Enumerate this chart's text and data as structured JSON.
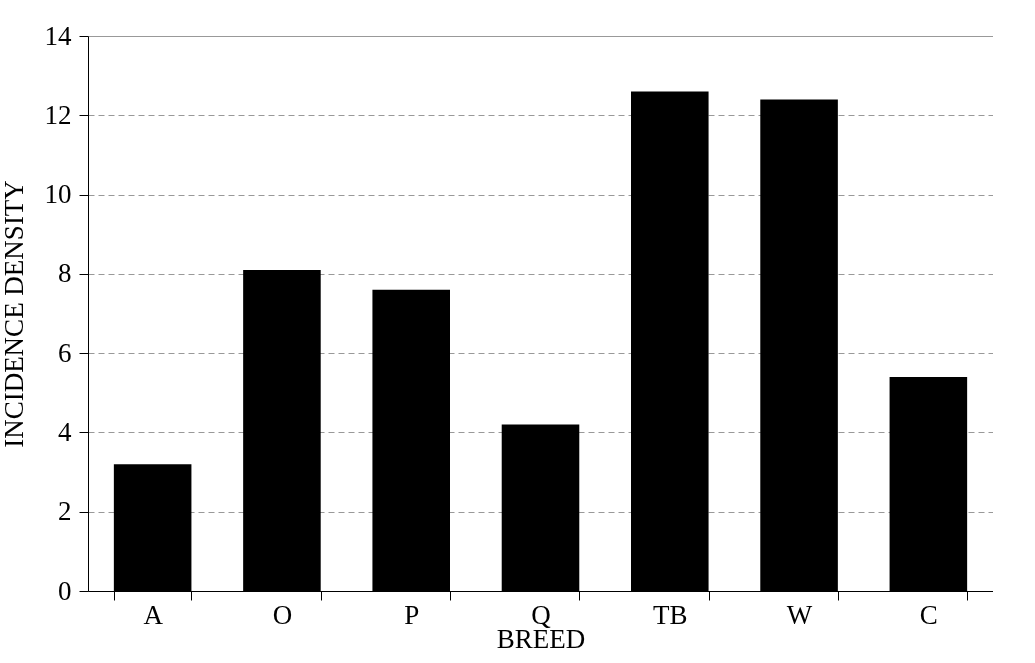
{
  "chart_data": {
    "type": "bar",
    "xlabel": "BREED",
    "ylabel": "INCIDENCE DENSITY",
    "categories": [
      "A",
      "O",
      "P",
      "Q",
      "TB",
      "W",
      "C"
    ],
    "values": [
      3.2,
      8.1,
      7.6,
      4.2,
      12.6,
      12.4,
      5.4
    ],
    "color": "#000000",
    "ylim": [
      0,
      14
    ],
    "yticks": [
      0,
      2,
      4,
      6,
      8,
      10,
      12,
      14
    ],
    "grid": "y"
  }
}
